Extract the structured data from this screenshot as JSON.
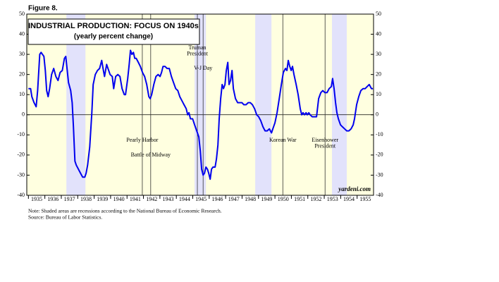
{
  "chart_data": {
    "type": "line",
    "figure_label": "Figure 8.",
    "title": "INDUSTRIAL PRODUCTION: FOCUS ON 1940s",
    "subtitle": "(yearly percent change)",
    "source_mark": "yardeni.com",
    "notes": [
      "Note: Shaded areas are recessions according to the National Bureau of Economic Research.",
      "Source: Bureau of Labor Statistics."
    ],
    "xlim": [
      1934.9,
      1956
    ],
    "xticks": [
      {
        "value": 1935,
        "label": "1935"
      },
      {
        "value": 1936,
        "label": "1936"
      },
      {
        "value": 1937,
        "label": "1937"
      },
      {
        "value": 1938,
        "label": "1938"
      },
      {
        "value": 1939,
        "label": "1939"
      },
      {
        "value": 1940,
        "label": "1940"
      },
      {
        "value": 1941,
        "label": "1941"
      },
      {
        "value": 1942,
        "label": "1942"
      },
      {
        "value": 1943,
        "label": "1943"
      },
      {
        "value": 1944,
        "label": "1944"
      },
      {
        "value": 1945,
        "label": "1945"
      },
      {
        "value": 1946,
        "label": "1946"
      },
      {
        "value": 1947,
        "label": "1947"
      },
      {
        "value": 1948,
        "label": "1948"
      },
      {
        "value": 1949,
        "label": "1949"
      },
      {
        "value": 1950,
        "label": "1950"
      },
      {
        "value": 1951,
        "label": "1951"
      },
      {
        "value": 1952,
        "label": "1952"
      },
      {
        "value": 1953,
        "label": "1953"
      },
      {
        "value": 1954,
        "label": "1954"
      },
      {
        "value": 1955,
        "label": "1955"
      }
    ],
    "ylim": [
      -40,
      50
    ],
    "yticks": [
      -40,
      -30,
      -20,
      -10,
      0,
      10,
      20,
      30,
      40,
      50
    ],
    "recessions": [
      [
        1937.31,
        1938.47
      ],
      [
        1945.11,
        1945.8
      ],
      [
        1948.8,
        1949.79
      ],
      [
        1953.47,
        1954.37
      ]
    ],
    "events": [
      {
        "label": [
          "Pearly Harbor"
        ],
        "x": 1941.93
      },
      {
        "label": [
          "Battle of Midway"
        ],
        "x": 1942.44
      },
      {
        "label": [
          "Truman",
          "President"
        ],
        "x": 1945.28
      },
      {
        "label": [
          "V-J Day"
        ],
        "x": 1945.63
      },
      {
        "label": [
          "Korean War"
        ],
        "x": 1950.48
      },
      {
        "label": [
          "Eisenhower",
          "President"
        ],
        "x": 1953.05
      }
    ],
    "series": [
      {
        "color": "#0000ee",
        "x": [
          1935.0,
          1935.13,
          1935.21,
          1935.34,
          1935.47,
          1935.56,
          1935.69,
          1935.77,
          1935.94,
          1936.03,
          1936.11,
          1936.2,
          1936.29,
          1936.41,
          1936.54,
          1936.67,
          1936.8,
          1936.93,
          1937.06,
          1937.19,
          1937.27,
          1937.36,
          1937.44,
          1937.57,
          1937.66,
          1937.74,
          1937.83,
          1937.91,
          1938.04,
          1938.17,
          1938.3,
          1938.43,
          1938.51,
          1938.6,
          1938.73,
          1938.86,
          1938.94,
          1939.07,
          1939.2,
          1939.33,
          1939.46,
          1939.54,
          1939.63,
          1939.76,
          1939.84,
          1939.97,
          1940.1,
          1940.19,
          1940.31,
          1940.44,
          1940.57,
          1940.7,
          1940.83,
          1940.91,
          1941.04,
          1941.13,
          1941.21,
          1941.3,
          1941.39,
          1941.47,
          1941.56,
          1941.69,
          1941.81,
          1941.94,
          1942.07,
          1942.2,
          1942.33,
          1942.41,
          1942.5,
          1942.63,
          1942.76,
          1942.89,
          1943.01,
          1943.1,
          1943.19,
          1943.31,
          1943.44,
          1943.57,
          1943.7,
          1943.83,
          1943.96,
          1944.09,
          1944.21,
          1944.34,
          1944.47,
          1944.6,
          1944.69,
          1944.77,
          1944.86,
          1944.99,
          1945.11,
          1945.24,
          1945.37,
          1945.46,
          1945.54,
          1945.63,
          1945.71,
          1945.8,
          1945.89,
          1945.97,
          1946.06,
          1946.14,
          1946.23,
          1946.36,
          1946.44,
          1946.53,
          1946.61,
          1946.7,
          1946.79,
          1946.87,
          1946.96,
          1947.04,
          1947.13,
          1947.21,
          1947.3,
          1947.39,
          1947.47,
          1947.6,
          1947.73,
          1947.86,
          1947.99,
          1948.11,
          1948.24,
          1948.37,
          1948.5,
          1948.63,
          1948.76,
          1948.89,
          1949.01,
          1949.14,
          1949.27,
          1949.4,
          1949.53,
          1949.66,
          1949.79,
          1949.87,
          1950.0,
          1950.13,
          1950.26,
          1950.39,
          1950.51,
          1950.64,
          1950.73,
          1950.81,
          1950.9,
          1950.99,
          1951.07,
          1951.16,
          1951.29,
          1951.41,
          1951.54,
          1951.63,
          1951.71,
          1951.8,
          1951.89,
          1951.97,
          1952.06,
          1952.14,
          1952.27,
          1952.4,
          1952.53,
          1952.66,
          1952.79,
          1952.91,
          1953.04,
          1953.17,
          1953.3,
          1953.43,
          1953.51,
          1953.6,
          1953.69,
          1953.77,
          1953.86,
          1953.99,
          1954.11,
          1954.24,
          1954.37,
          1954.5,
          1954.63,
          1954.76,
          1954.84,
          1954.97,
          1955.1,
          1955.23,
          1955.36,
          1955.49,
          1955.61,
          1955.74,
          1955.87,
          1955.96
        ],
        "values": [
          13,
          13,
          9,
          6,
          4,
          12,
          30,
          31,
          29,
          22,
          12,
          9,
          13,
          20,
          23,
          19,
          17,
          21,
          22,
          28,
          29,
          22,
          16,
          12,
          6,
          -6,
          -23,
          -25,
          -27,
          -29,
          -31,
          -31,
          -29,
          -25,
          -16,
          1,
          15,
          20,
          22,
          23,
          27,
          23,
          19,
          25,
          23,
          20,
          19,
          13,
          19,
          20,
          19,
          13,
          10,
          10,
          18,
          25,
          32,
          30,
          31,
          28,
          28,
          26,
          24,
          21,
          19,
          15,
          9,
          8,
          10,
          15,
          19,
          20,
          19,
          21,
          24,
          24,
          23,
          23,
          19,
          16,
          13,
          12,
          9,
          7,
          5,
          3,
          0,
          1,
          -2,
          -2,
          -5,
          -8,
          -11,
          -18,
          -27,
          -30,
          -29,
          -26,
          -27,
          -29,
          -32,
          -27,
          -26,
          -26,
          -22,
          -15,
          -2,
          8,
          15,
          13,
          15,
          22,
          26,
          15,
          17,
          22,
          13,
          8,
          6,
          6,
          6,
          5,
          5,
          6,
          6,
          5,
          3,
          0,
          -1,
          -3,
          -6,
          -8,
          -8,
          -7,
          -9,
          -7,
          -4,
          1,
          8,
          15,
          21,
          23,
          22,
          27,
          24,
          22,
          24,
          20,
          15,
          10,
          3,
          0,
          1,
          0,
          1,
          0,
          1,
          0,
          -1,
          -1,
          -1,
          8,
          11,
          12,
          11,
          11,
          13,
          14,
          18,
          13,
          6,
          1,
          -2,
          -5,
          -6,
          -7,
          -8,
          -8,
          -7,
          -5,
          -2,
          5,
          9,
          12,
          13,
          13,
          14,
          15,
          13,
          13
        ]
      }
    ]
  }
}
